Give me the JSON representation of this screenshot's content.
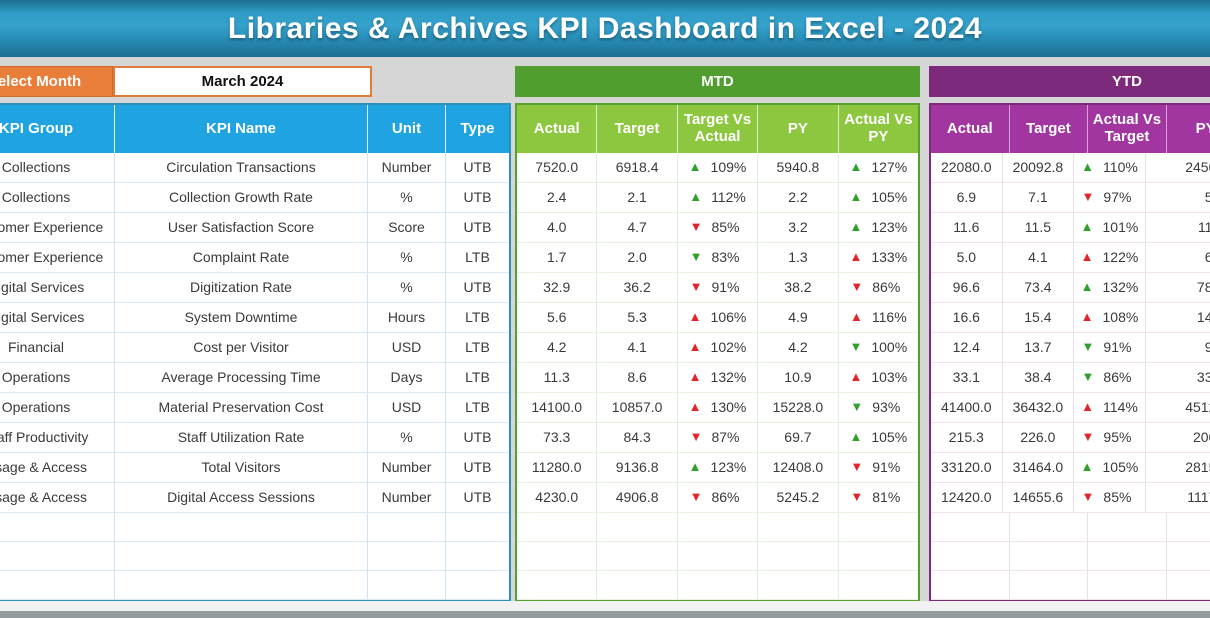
{
  "title": "Libraries & Archives KPI Dashboard in Excel - 2024",
  "controls": {
    "select_month_label": "Select Month",
    "selected_month": "March 2024"
  },
  "sections": {
    "mtd_label": "MTD",
    "ytd_label": "YTD"
  },
  "table": {
    "base_headers": [
      "KPI Group",
      "KPI Name",
      "Unit",
      "Type"
    ],
    "mtd_headers": [
      "Actual",
      "Target",
      "Target Vs Actual",
      "PY",
      "Actual Vs PY"
    ],
    "ytd_headers": [
      "Actual",
      "Target",
      "Actual Vs Target",
      "PY"
    ],
    "empty_row_count": 3,
    "rows": [
      {
        "group": "Collections",
        "name": "Circulation Transactions",
        "unit": "Number",
        "type": "UTB",
        "mtd": {
          "actual": "7520.0",
          "target": "6918.4",
          "target_vs_actual": {
            "dir": "up",
            "tone": "good",
            "value": "109%"
          },
          "py": "5940.8",
          "actual_vs_py": {
            "dir": "up",
            "tone": "good",
            "value": "127%"
          }
        },
        "ytd": {
          "actual": "22080.0",
          "target": "20092.8",
          "actual_vs_target": {
            "dir": "up",
            "tone": "good",
            "value": "110%"
          },
          "py_visible": "2450"
        }
      },
      {
        "group": "Collections",
        "name": "Collection Growth Rate",
        "unit": "%",
        "type": "UTB",
        "mtd": {
          "actual": "2.4",
          "target": "2.1",
          "target_vs_actual": {
            "dir": "up",
            "tone": "good",
            "value": "112%"
          },
          "py": "2.2",
          "actual_vs_py": {
            "dir": "up",
            "tone": "good",
            "value": "105%"
          }
        },
        "ytd": {
          "actual": "6.9",
          "target": "7.1",
          "actual_vs_target": {
            "dir": "down",
            "tone": "bad",
            "value": "97%"
          },
          "py_visible": "5."
        }
      },
      {
        "group": "Customer Experience",
        "name": "User Satisfaction Score",
        "unit": "Score",
        "type": "UTB",
        "mtd": {
          "actual": "4.0",
          "target": "4.7",
          "target_vs_actual": {
            "dir": "down",
            "tone": "bad",
            "value": "85%"
          },
          "py": "3.2",
          "actual_vs_py": {
            "dir": "up",
            "tone": "good",
            "value": "123%"
          }
        },
        "ytd": {
          "actual": "11.6",
          "target": "11.5",
          "actual_vs_target": {
            "dir": "up",
            "tone": "good",
            "value": "101%"
          },
          "py_visible": "11."
        }
      },
      {
        "group": "Customer Experience",
        "name": "Complaint Rate",
        "unit": "%",
        "type": "LTB",
        "mtd": {
          "actual": "1.7",
          "target": "2.0",
          "target_vs_actual": {
            "dir": "down",
            "tone": "good",
            "value": "83%"
          },
          "py": "1.3",
          "actual_vs_py": {
            "dir": "up",
            "tone": "bad",
            "value": "133%"
          }
        },
        "ytd": {
          "actual": "5.0",
          "target": "4.1",
          "actual_vs_target": {
            "dir": "up",
            "tone": "bad",
            "value": "122%"
          },
          "py_visible": "6."
        }
      },
      {
        "group": "Digital Services",
        "name": "Digitization Rate",
        "unit": "%",
        "type": "UTB",
        "mtd": {
          "actual": "32.9",
          "target": "36.2",
          "target_vs_actual": {
            "dir": "down",
            "tone": "bad",
            "value": "91%"
          },
          "py": "38.2",
          "actual_vs_py": {
            "dir": "down",
            "tone": "bad",
            "value": "86%"
          }
        },
        "ytd": {
          "actual": "96.6",
          "target": "73.4",
          "actual_vs_target": {
            "dir": "up",
            "tone": "good",
            "value": "132%"
          },
          "py_visible": "78."
        }
      },
      {
        "group": "Digital Services",
        "name": "System Downtime",
        "unit": "Hours",
        "type": "LTB",
        "mtd": {
          "actual": "5.6",
          "target": "5.3",
          "target_vs_actual": {
            "dir": "up",
            "tone": "bad",
            "value": "106%"
          },
          "py": "4.9",
          "actual_vs_py": {
            "dir": "up",
            "tone": "bad",
            "value": "116%"
          }
        },
        "ytd": {
          "actual": "16.6",
          "target": "15.4",
          "actual_vs_target": {
            "dir": "up",
            "tone": "bad",
            "value": "108%"
          },
          "py_visible": "14."
        }
      },
      {
        "group": "Financial",
        "name": "Cost per Visitor",
        "unit": "USD",
        "type": "LTB",
        "mtd": {
          "actual": "4.2",
          "target": "4.1",
          "target_vs_actual": {
            "dir": "up",
            "tone": "bad",
            "value": "102%"
          },
          "py": "4.2",
          "actual_vs_py": {
            "dir": "down",
            "tone": "good",
            "value": "100%"
          }
        },
        "ytd": {
          "actual": "12.4",
          "target": "13.7",
          "actual_vs_target": {
            "dir": "down",
            "tone": "good",
            "value": "91%"
          },
          "py_visible": "9."
        }
      },
      {
        "group": "Operations",
        "name": "Average Processing Time",
        "unit": "Days",
        "type": "LTB",
        "mtd": {
          "actual": "11.3",
          "target": "8.6",
          "target_vs_actual": {
            "dir": "up",
            "tone": "bad",
            "value": "132%"
          },
          "py": "10.9",
          "actual_vs_py": {
            "dir": "up",
            "tone": "bad",
            "value": "103%"
          }
        },
        "ytd": {
          "actual": "33.1",
          "target": "38.4",
          "actual_vs_target": {
            "dir": "down",
            "tone": "good",
            "value": "86%"
          },
          "py_visible": "33."
        }
      },
      {
        "group": "Operations",
        "name": "Material Preservation Cost",
        "unit": "USD",
        "type": "LTB",
        "mtd": {
          "actual": "14100.0",
          "target": "10857.0",
          "target_vs_actual": {
            "dir": "up",
            "tone": "bad",
            "value": "130%"
          },
          "py": "15228.0",
          "actual_vs_py": {
            "dir": "down",
            "tone": "good",
            "value": "93%"
          }
        },
        "ytd": {
          "actual": "41400.0",
          "target": "36432.0",
          "actual_vs_target": {
            "dir": "up",
            "tone": "bad",
            "value": "114%"
          },
          "py_visible": "4512"
        }
      },
      {
        "group": "Staff Productivity",
        "name": "Staff Utilization Rate",
        "unit": "%",
        "type": "UTB",
        "mtd": {
          "actual": "73.3",
          "target": "84.3",
          "target_vs_actual": {
            "dir": "down",
            "tone": "bad",
            "value": "87%"
          },
          "py": "69.7",
          "actual_vs_py": {
            "dir": "up",
            "tone": "good",
            "value": "105%"
          }
        },
        "ytd": {
          "actual": "215.3",
          "target": "226.0",
          "actual_vs_target": {
            "dir": "down",
            "tone": "bad",
            "value": "95%"
          },
          "py_visible": "200"
        }
      },
      {
        "group": "Usage & Access",
        "name": "Total Visitors",
        "unit": "Number",
        "type": "UTB",
        "mtd": {
          "actual": "11280.0",
          "target": "9136.8",
          "target_vs_actual": {
            "dir": "up",
            "tone": "good",
            "value": "123%"
          },
          "py": "12408.0",
          "actual_vs_py": {
            "dir": "down",
            "tone": "bad",
            "value": "91%"
          }
        },
        "ytd": {
          "actual": "33120.0",
          "target": "31464.0",
          "actual_vs_target": {
            "dir": "up",
            "tone": "good",
            "value": "105%"
          },
          "py_visible": "2815"
        }
      },
      {
        "group": "Usage & Access",
        "name": "Digital Access Sessions",
        "unit": "Number",
        "type": "UTB",
        "mtd": {
          "actual": "4230.0",
          "target": "4906.8",
          "target_vs_actual": {
            "dir": "down",
            "tone": "bad",
            "value": "86%"
          },
          "py": "5245.2",
          "actual_vs_py": {
            "dir": "down",
            "tone": "bad",
            "value": "81%"
          }
        },
        "ytd": {
          "actual": "12420.0",
          "target": "14655.6",
          "actual_vs_target": {
            "dir": "down",
            "tone": "bad",
            "value": "85%"
          },
          "py_visible": "1117"
        }
      }
    ]
  },
  "colors": {
    "banner_blue_top": "#2f9cc6",
    "banner_blue_bottom": "#1c6e91",
    "header_blue": "#1fa3e1",
    "select_orange": "#e87e39",
    "mtd_dark_green": "#4f9e2f",
    "mtd_light_green": "#8dc63f",
    "ytd_dark_purple": "#7d2a7d",
    "ytd_light_purple": "#a136a1",
    "arrow_good_green": "#2fa12b",
    "arrow_bad_red": "#e3242b"
  }
}
